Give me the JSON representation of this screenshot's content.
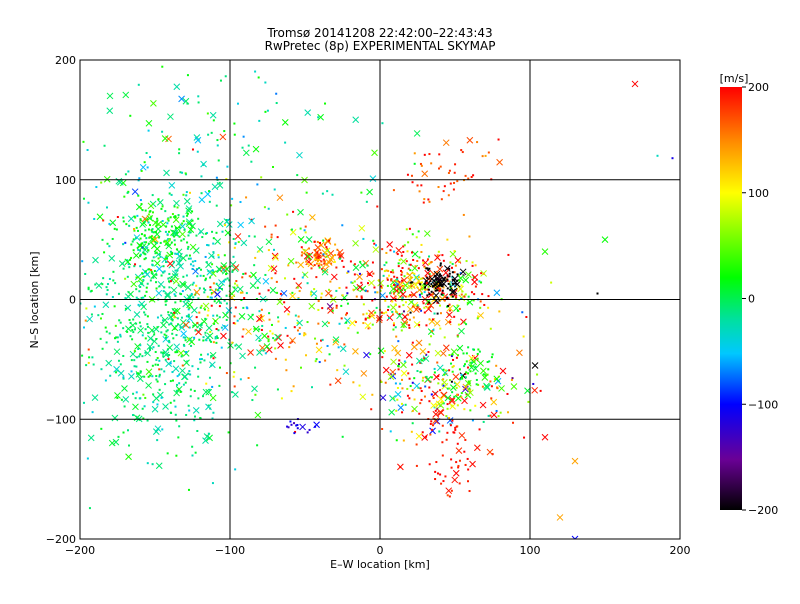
{
  "chart_data": {
    "type": "scatter",
    "title": "Tromsø 20141208 22:42:00–22:43:43",
    "subtitle": "RwPretec (8p) EXPERIMENTAL SKYMAP",
    "xlabel": "E–W location [km]",
    "ylabel": "N–S location [km]",
    "xlim": [
      -200,
      200
    ],
    "ylim": [
      -200,
      200
    ],
    "xticks": [
      -200,
      -100,
      0,
      100,
      200
    ],
    "yticks": [
      -200,
      -100,
      0,
      100,
      200
    ],
    "grid": true,
    "colorbar": {
      "label": "[m/s]",
      "range": [
        -200,
        200
      ],
      "ticks": [
        200,
        100,
        0,
        -100,
        -200
      ],
      "colors": [
        "#000000",
        "#6a0096",
        "#0000ff",
        "#00c8ff",
        "#00e0a0",
        "#00ff00",
        "#ffff00",
        "#ff8c00",
        "#ff0000"
      ]
    },
    "clusters": [
      {
        "name": "west-cyan",
        "cx": -140,
        "cy": -15,
        "sx": 25,
        "sy": 55,
        "n": 700,
        "v": -10,
        "vs": 18
      },
      {
        "name": "northwest-green",
        "cx": -150,
        "cy": 55,
        "sx": 12,
        "sy": 14,
        "n": 120,
        "v": 20,
        "vs": 12
      },
      {
        "name": "center-mixed",
        "cx": 25,
        "cy": 8,
        "sx": 25,
        "sy": 18,
        "n": 420,
        "v": 120,
        "vs": 110
      },
      {
        "name": "center-black",
        "cx": 40,
        "cy": 12,
        "sx": 8,
        "sy": 8,
        "n": 90,
        "v": -200,
        "vs": 5
      },
      {
        "name": "nw-red-orange",
        "cx": -40,
        "cy": 35,
        "sx": 8,
        "sy": 6,
        "n": 70,
        "v": 170,
        "vs": 25
      },
      {
        "name": "southeast-mixed",
        "cx": 45,
        "cy": -75,
        "sx": 25,
        "sy": 18,
        "n": 220,
        "v": 100,
        "vs": 120
      },
      {
        "name": "south-red",
        "cx": 45,
        "cy": -130,
        "sx": 15,
        "sy": 20,
        "n": 60,
        "v": 190,
        "vs": 10
      },
      {
        "name": "north-red",
        "cx": 45,
        "cy": 105,
        "sx": 15,
        "sy": 15,
        "n": 50,
        "v": 180,
        "vs": 20
      },
      {
        "name": "mid-band-mixed",
        "cx": -70,
        "cy": 0,
        "sx": 45,
        "sy": 45,
        "n": 330,
        "v": 110,
        "vs": 90
      },
      {
        "name": "blue-group",
        "cx": -55,
        "cy": -105,
        "sx": 6,
        "sy": 3,
        "n": 15,
        "v": -110,
        "vs": 10
      },
      {
        "name": "scatter-cyan",
        "cx": -120,
        "cy": 80,
        "sx": 60,
        "sy": 90,
        "n": 280,
        "v": -10,
        "vs": 30
      },
      {
        "name": "east-green",
        "cx": 60,
        "cy": -60,
        "sx": 10,
        "sy": 12,
        "n": 60,
        "v": 20,
        "vs": 15
      }
    ],
    "isolated": [
      {
        "x": 170,
        "y": 180,
        "v": 200,
        "m": "x"
      },
      {
        "x": 150,
        "y": 50,
        "v": 20,
        "m": "x"
      },
      {
        "x": 130,
        "y": -135,
        "v": 140,
        "m": "x"
      },
      {
        "x": 120,
        "y": -182,
        "v": 140,
        "m": "x"
      },
      {
        "x": 130,
        "y": -200,
        "v": -100,
        "m": "x"
      },
      {
        "x": 110,
        "y": -115,
        "v": 200,
        "m": "x"
      },
      {
        "x": 185,
        "y": 120,
        "v": -30,
        "m": "dot"
      },
      {
        "x": 195,
        "y": 118,
        "v": -110,
        "m": "dot"
      },
      {
        "x": 145,
        "y": 5,
        "v": -200,
        "m": "dot"
      },
      {
        "x": 110,
        "y": 40,
        "v": 30,
        "m": "x"
      },
      {
        "x": -180,
        "y": 170,
        "v": 0,
        "m": "x"
      }
    ]
  }
}
